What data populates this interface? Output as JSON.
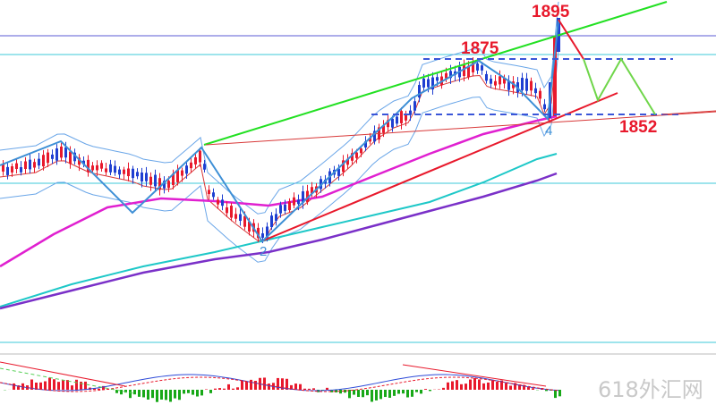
{
  "watermark": "618外汇网",
  "chart_data": {
    "type": "candlestick",
    "annotations": [
      {
        "text": "1895",
        "role": "high-label",
        "color": "#e8192c"
      },
      {
        "text": "1875",
        "role": "resistance-label",
        "color": "#e8192c"
      },
      {
        "text": "1852",
        "role": "support-label",
        "color": "#e8192c"
      },
      {
        "text": "2",
        "role": "wave-point",
        "color": "#3d8fd6"
      },
      {
        "text": "4",
        "role": "wave-point",
        "color": "#3d8fd6"
      }
    ],
    "colors": {
      "bull": "#e8192c",
      "bear": "#1f3fd1",
      "trend_green": "#22e022",
      "trend_red": "#e8192c",
      "zigzag": "#3d8fd6",
      "ma_magenta": "#e020d0",
      "ma_cyan": "#1ec8c8",
      "ma_purple": "#7a30c8",
      "projection": "#6fd64a",
      "level_dash": "#3a55d8"
    },
    "grid": false,
    "legend": "none",
    "indicator_panel": "MACD"
  }
}
